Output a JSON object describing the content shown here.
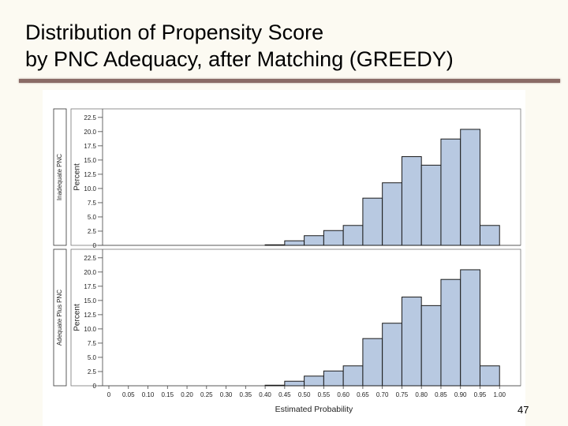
{
  "slide": {
    "title_line1": "Distribution of Propensity Score",
    "title_line2": "by PNC Adequacy, after Matching (GREEDY)",
    "page_number": "47"
  },
  "colors": {
    "bar_fill": "#b8c9e1",
    "bar_stroke": "#1a1a1a",
    "rule": "#8a6b66"
  },
  "chart_data": {
    "type": "bar",
    "xlabel": "Estimated Probability",
    "x_tick_labels": [
      "0",
      "0.05",
      "0.10",
      "0.15",
      "0.20",
      "0.25",
      "0.30",
      "0.35",
      "0.40",
      "0.45",
      "0.50",
      "0.55",
      "0.60",
      "0.65",
      "0.70",
      "0.75",
      "0.80",
      "0.85",
      "0.90",
      "0.95",
      "1.00"
    ],
    "bin_width": 0.05,
    "y_tick_labels": [
      "0",
      "2.5",
      "5.0",
      "7.5",
      "10.0",
      "12.5",
      "15.0",
      "17.5",
      "20.0",
      "22.5"
    ],
    "ylim": [
      0,
      24
    ],
    "panels": [
      {
        "row_label": "Inadequate PNC",
        "ylabel": "Percent",
        "bins": [
          {
            "x": 0.4,
            "value": 0.1
          },
          {
            "x": 0.45,
            "value": 0.8
          },
          {
            "x": 0.5,
            "value": 1.7
          },
          {
            "x": 0.55,
            "value": 2.6
          },
          {
            "x": 0.6,
            "value": 3.5
          },
          {
            "x": 0.65,
            "value": 8.3
          },
          {
            "x": 0.7,
            "value": 11.0
          },
          {
            "x": 0.75,
            "value": 15.6
          },
          {
            "x": 0.8,
            "value": 14.1
          },
          {
            "x": 0.85,
            "value": 18.7
          },
          {
            "x": 0.9,
            "value": 20.4
          },
          {
            "x": 0.95,
            "value": 3.5
          }
        ]
      },
      {
        "row_label": "Adequate Plus PNC",
        "ylabel": "Percent",
        "bins": [
          {
            "x": 0.4,
            "value": 0.1
          },
          {
            "x": 0.45,
            "value": 0.8
          },
          {
            "x": 0.5,
            "value": 1.7
          },
          {
            "x": 0.55,
            "value": 2.6
          },
          {
            "x": 0.6,
            "value": 3.5
          },
          {
            "x": 0.65,
            "value": 8.3
          },
          {
            "x": 0.7,
            "value": 11.0
          },
          {
            "x": 0.75,
            "value": 15.6
          },
          {
            "x": 0.8,
            "value": 14.1
          },
          {
            "x": 0.85,
            "value": 18.7
          },
          {
            "x": 0.9,
            "value": 20.4
          },
          {
            "x": 0.95,
            "value": 3.5
          }
        ]
      }
    ]
  }
}
